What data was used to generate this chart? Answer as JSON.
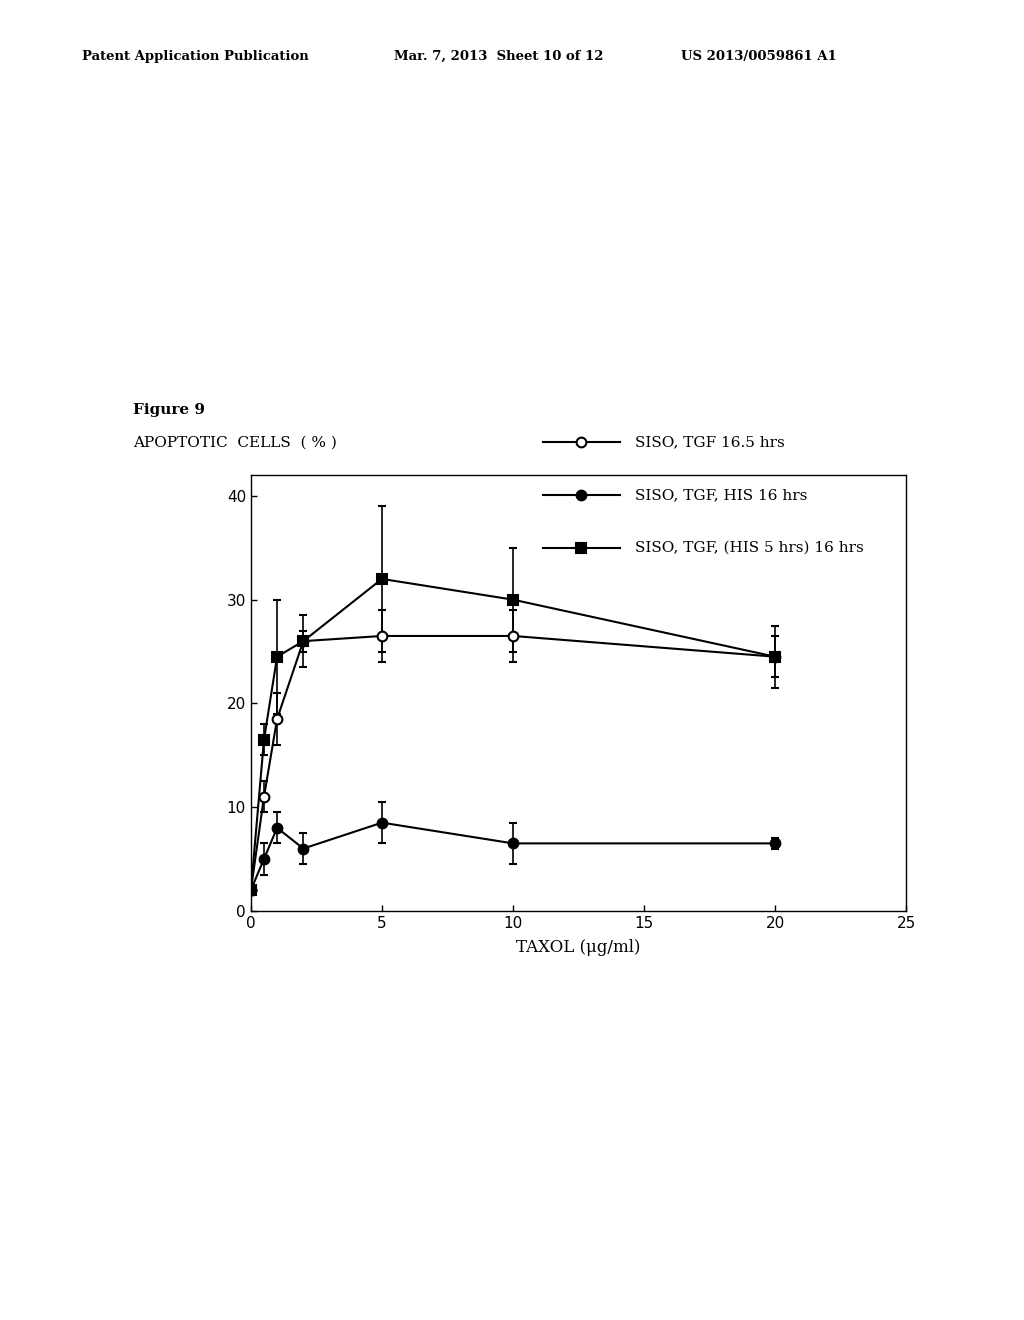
{
  "figure_label": "Figure 9",
  "ylabel": "APOPTOTIC  CELLS  ( % )",
  "xlabel": "TAXOL (μg/ml)",
  "header_left": "Patent Application Publication",
  "header_mid": "Mar. 7, 2013  Sheet 10 of 12",
  "header_right": "US 2013/0059861 A1",
  "xlim": [
    0,
    25
  ],
  "ylim": [
    0,
    42
  ],
  "xticks": [
    0,
    5,
    10,
    15,
    20,
    25
  ],
  "yticks": [
    0,
    10,
    20,
    30,
    40
  ],
  "series1": {
    "label": "SISO, TGF 16.5 hrs",
    "x": [
      0,
      0.5,
      1,
      2,
      5,
      10,
      20
    ],
    "y": [
      2,
      11,
      18.5,
      26,
      26.5,
      26.5,
      24.5
    ],
    "yerr": [
      0.5,
      1.5,
      2.5,
      2.5,
      2.5,
      2.5,
      3
    ],
    "marker": "o",
    "color": "black",
    "linewidth": 1.5
  },
  "series2": {
    "label": "SISO, TGF, HIS 16 hrs",
    "x": [
      0,
      0.5,
      1,
      2,
      5,
      10,
      20
    ],
    "y": [
      2,
      5,
      8,
      6,
      8.5,
      6.5,
      6.5
    ],
    "yerr": [
      0.5,
      1.5,
      1.5,
      1.5,
      2,
      2,
      0.5
    ],
    "marker": "o",
    "color": "black",
    "linewidth": 1.5
  },
  "series3": {
    "label": "SISO, TGF, (HIS 5 hrs) 16 hrs",
    "x": [
      0,
      0.5,
      1,
      2,
      5,
      10,
      20
    ],
    "y": [
      2,
      16.5,
      24.5,
      26,
      32,
      30,
      24.5
    ],
    "yerr": [
      0.5,
      1.5,
      5.5,
      1,
      7,
      5,
      2
    ],
    "marker": "s",
    "color": "black",
    "linewidth": 1.5
  },
  "background_color": "#ffffff",
  "plot_bg_color": "#ffffff",
  "legend_items": [
    {
      "label": "SISO, TGF 16.5 hrs",
      "marker": "o",
      "facecolor": "white"
    },
    {
      "label": "SISO, TGF, HIS 16 hrs",
      "marker": "o",
      "facecolor": "black"
    },
    {
      "label": "SISO, TGF, (HIS 5 hrs) 16 hrs",
      "marker": "s",
      "facecolor": "black"
    }
  ]
}
